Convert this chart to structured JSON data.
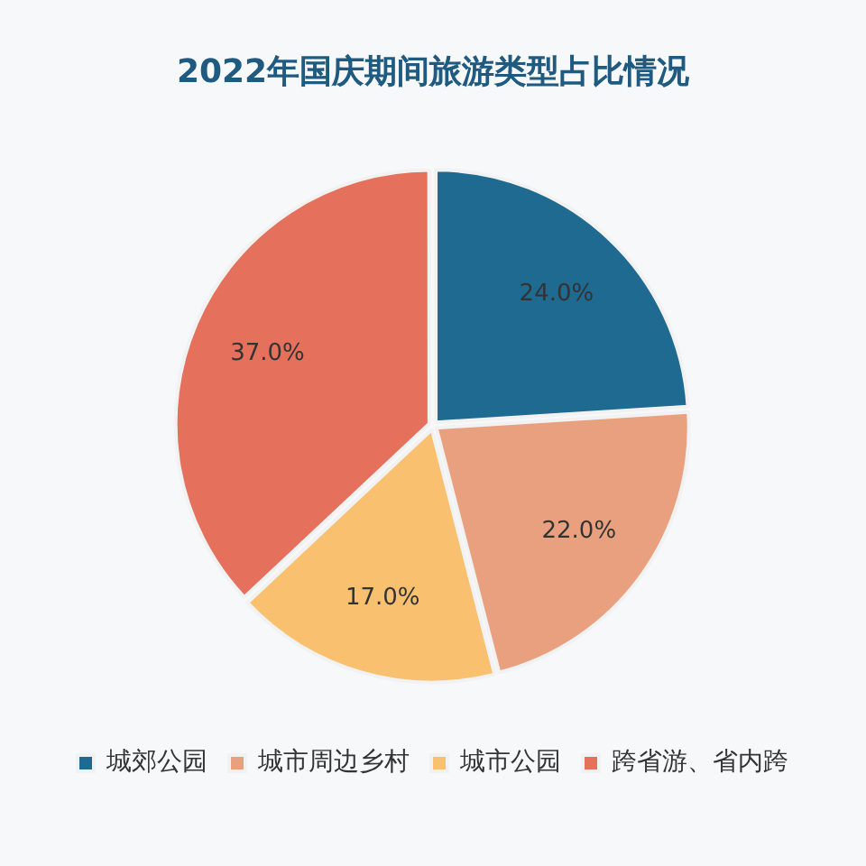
{
  "chart_data": {
    "type": "pie",
    "title": "2022年国庆期间旅游类型占比情况",
    "categories": [
      "城郊公园",
      "城市周边乡村",
      "城市公园",
      "跨省游、省内跨"
    ],
    "values": [
      24,
      22,
      17,
      37
    ],
    "colors": [
      "#1e6a90",
      "#e9a07f",
      "#f9c16f",
      "#e5705b"
    ],
    "value_labels": [
      "24.0%",
      "22.0%",
      "17.0%",
      "37.0%"
    ],
    "legend": "bottom"
  }
}
